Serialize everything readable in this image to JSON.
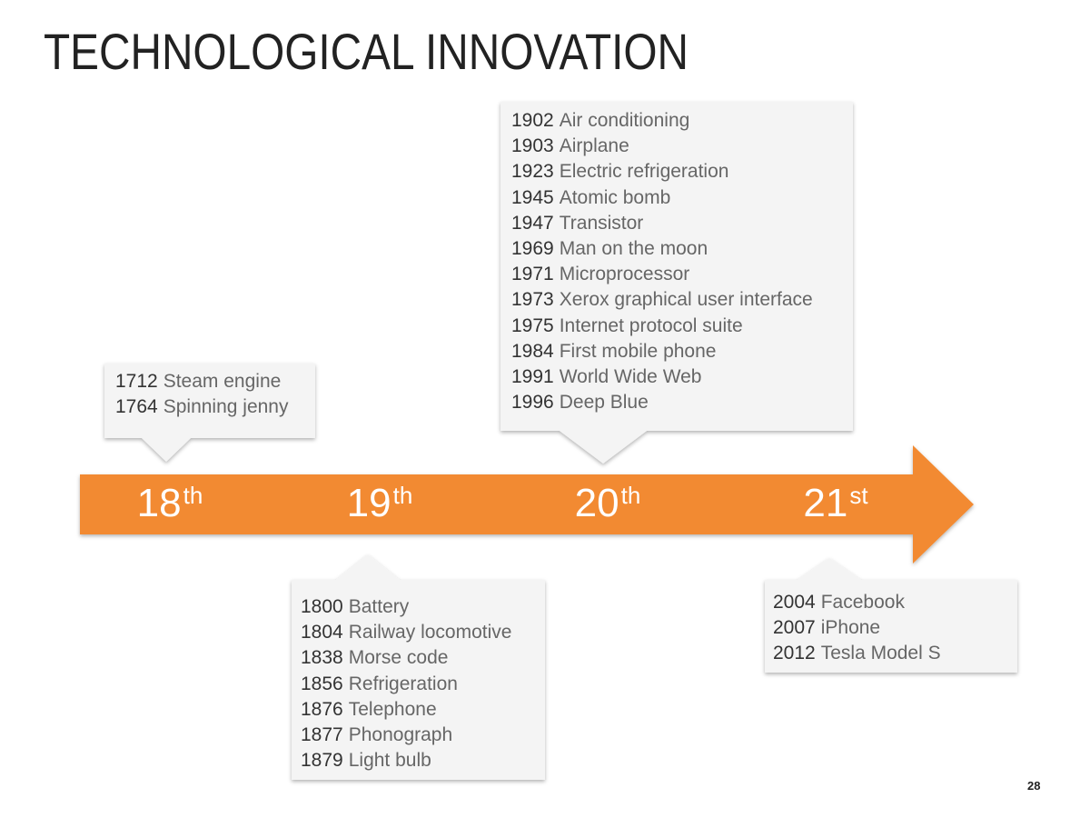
{
  "title": "TECHNOLOGICAL INNOVATION",
  "timeline": {
    "centuries": [
      {
        "number": "18",
        "suffix": "th"
      },
      {
        "number": "19",
        "suffix": "th"
      },
      {
        "number": "20",
        "suffix": "th"
      },
      {
        "number": "21",
        "suffix": "st"
      }
    ]
  },
  "callouts": [
    {
      "items": [
        {
          "year": "1712",
          "event": "Steam engine"
        },
        {
          "year": "1764",
          "event": "Spinning jenny"
        }
      ]
    },
    {
      "items": [
        {
          "year": "1800",
          "event": "Battery"
        },
        {
          "year": "1804",
          "event": "Railway locomotive"
        },
        {
          "year": "1838",
          "event": "Morse code"
        },
        {
          "year": "1856",
          "event": "Refrigeration"
        },
        {
          "year": "1876",
          "event": "Telephone"
        },
        {
          "year": "1877",
          "event": "Phonograph"
        },
        {
          "year": "1879",
          "event": "Light bulb"
        }
      ]
    },
    {
      "items": [
        {
          "year": "1902",
          "event": "Air conditioning"
        },
        {
          "year": "1903",
          "event": "Airplane"
        },
        {
          "year": "1923",
          "event": "Electric refrigeration"
        },
        {
          "year": "1945",
          "event": "Atomic bomb"
        },
        {
          "year": "1947",
          "event": "Transistor"
        },
        {
          "year": "1969",
          "event": "Man on the moon"
        },
        {
          "year": "1971",
          "event": "Microprocessor"
        },
        {
          "year": "1973",
          "event": "Xerox graphical user interface"
        },
        {
          "year": "1975",
          "event": "Internet protocol suite"
        },
        {
          "year": "1984",
          "event": "First mobile phone"
        },
        {
          "year": "1991",
          "event": "World Wide Web"
        },
        {
          "year": "1996",
          "event": "Deep Blue"
        }
      ]
    },
    {
      "items": [
        {
          "year": "2004",
          "event": "Facebook"
        },
        {
          "year": "2007",
          "event": "iPhone"
        },
        {
          "year": "2012",
          "event": "Tesla Model S"
        }
      ]
    }
  ],
  "page_number": "28"
}
